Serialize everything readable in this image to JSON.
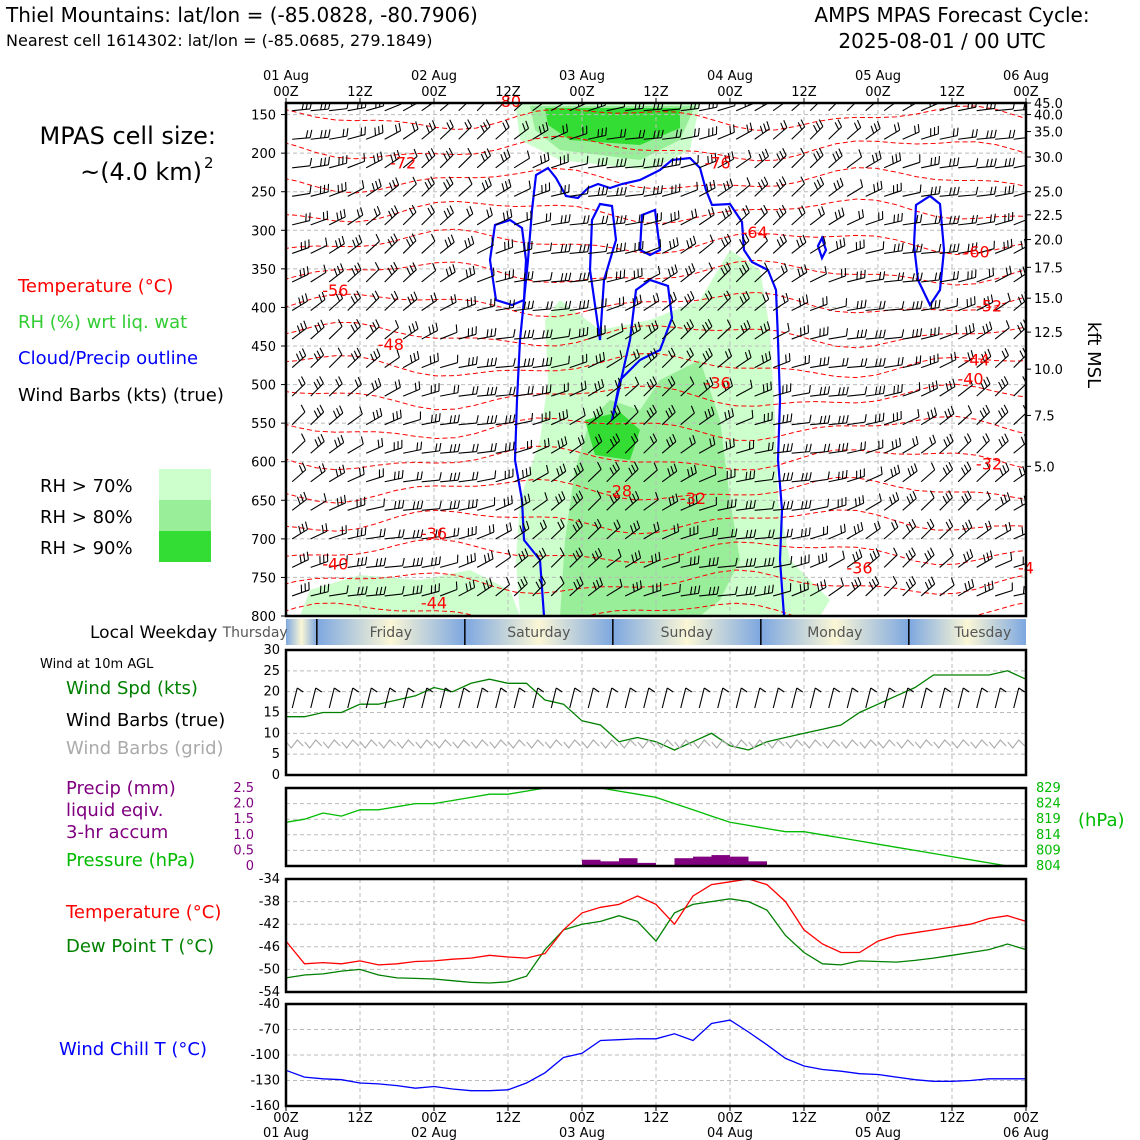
{
  "header": {
    "title_line1": "Thiel Mountains: lat/lon = (-85.0828, -80.7906)",
    "title_line2": "Nearest cell 1614302: lat/lon = (-85.0685, 279.1849)",
    "cycle_line1": "AMPS MPAS Forecast Cycle:",
    "cycle_line2": "2025-08-01 / 00 UTC"
  },
  "left_legend": {
    "cell_size_line1": "MPAS cell size:",
    "cell_size_line2": "~(4.0 km)",
    "cell_size_sup": "2",
    "temperature": "Temperature (°C)",
    "rh": "RH (%) wrt liq. wat",
    "cloud": "Cloud/Precip outline",
    "wind": "Wind Barbs (kts) (true)",
    "rh70": "RH > 70%",
    "rh80": "RH > 80%",
    "rh90": "RH > 90%"
  },
  "colors": {
    "temperature": "#ff0000",
    "rh": "#33cc33",
    "cloud": "#0000ff",
    "rh70": "#ccffcc",
    "rh80": "#99ee99",
    "rh90": "#33dd33",
    "precip": "#800080",
    "pressure": "#00bb00",
    "dewpoint": "#008000",
    "windchill": "#0000ff",
    "grid_barbs": "#aaaaaa"
  },
  "time_axis": {
    "ticks": [
      {
        "hour": 0,
        "top": "01 Aug",
        "bottom": "00Z"
      },
      {
        "hour": 12,
        "top": "",
        "bottom": "12Z"
      },
      {
        "hour": 24,
        "top": "02 Aug",
        "bottom": "00Z"
      },
      {
        "hour": 36,
        "top": "",
        "bottom": "12Z"
      },
      {
        "hour": 48,
        "top": "03 Aug",
        "bottom": "00Z"
      },
      {
        "hour": 60,
        "top": "",
        "bottom": "12Z"
      },
      {
        "hour": 72,
        "top": "04 Aug",
        "bottom": "00Z"
      },
      {
        "hour": 84,
        "top": "",
        "bottom": "12Z"
      },
      {
        "hour": 96,
        "top": "05 Aug",
        "bottom": "00Z"
      },
      {
        "hour": 108,
        "top": "",
        "bottom": "12Z"
      },
      {
        "hour": 120,
        "top": "06 Aug",
        "bottom": "00Z"
      }
    ],
    "weekday_label": "Local Weekday",
    "weekdays": [
      {
        "name": "Thursday",
        "center_hour": -5
      },
      {
        "name": "Friday",
        "center_hour": 17
      },
      {
        "name": "Saturday",
        "center_hour": 41
      },
      {
        "name": "Sunday",
        "center_hour": 65
      },
      {
        "name": "Monday",
        "center_hour": 89
      },
      {
        "name": "Tuesday",
        "center_hour": 113
      }
    ],
    "day_boundaries": [
      5,
      29,
      53,
      77,
      101
    ]
  },
  "chart_data": [
    {
      "type": "heatmap",
      "panel": "time-height cross section",
      "y_left": {
        "label": "",
        "ticks": [
          150,
          200,
          250,
          300,
          350,
          400,
          450,
          500,
          550,
          600,
          650,
          700,
          750,
          800
        ],
        "ylim": [
          800,
          135
        ]
      },
      "y_right": {
        "label": "kft MSL",
        "ticks": [
          {
            "p": 135,
            "t": "45.0"
          },
          {
            "p": 150,
            "t": "40.0"
          },
          {
            "p": 172,
            "t": "35.0"
          },
          {
            "p": 205,
            "t": "30.0"
          },
          {
            "p": 250,
            "t": "25.0"
          },
          {
            "p": 280,
            "t": "22.5"
          },
          {
            "p": 312,
            "t": "20.0"
          },
          {
            "p": 348,
            "t": "17.5"
          },
          {
            "p": 388,
            "t": "15.0"
          },
          {
            "p": 432,
            "t": "12.5"
          },
          {
            "p": 480,
            "t": "10.0"
          },
          {
            "p": 540,
            "t": "7.5"
          },
          {
            "p": 606,
            "t": "5.0"
          }
        ]
      },
      "temperature_labels": [
        {
          "hour": 36,
          "p": 140,
          "text": "-80"
        },
        {
          "hour": 19,
          "p": 220,
          "text": "-72"
        },
        {
          "hour": 70,
          "p": 220,
          "text": "-76"
        },
        {
          "hour": 76,
          "p": 310,
          "text": "-64"
        },
        {
          "hour": 112,
          "p": 335,
          "text": "-60"
        },
        {
          "hour": 8,
          "p": 385,
          "text": "-56"
        },
        {
          "hour": 114,
          "p": 405,
          "text": "-52"
        },
        {
          "hour": 17,
          "p": 455,
          "text": "-48"
        },
        {
          "hour": 112,
          "p": 475,
          "text": "-44"
        },
        {
          "hour": 111,
          "p": 500,
          "text": "-40"
        },
        {
          "hour": 70,
          "p": 505,
          "text": "-36"
        },
        {
          "hour": 114,
          "p": 610,
          "text": "-32"
        },
        {
          "hour": 66,
          "p": 655,
          "text": "-32"
        },
        {
          "hour": 54,
          "p": 645,
          "text": "-28"
        },
        {
          "hour": 24,
          "p": 700,
          "text": "-36"
        },
        {
          "hour": 8,
          "p": 740,
          "text": "-40"
        },
        {
          "hour": 24,
          "p": 790,
          "text": "-44"
        },
        {
          "hour": 93,
          "p": 745,
          "text": "-36"
        },
        {
          "hour": 120,
          "p": 745,
          "text": "-4"
        }
      ]
    },
    {
      "type": "line",
      "panel": "wind",
      "title": "Wind at 10m AGL",
      "series": [
        {
          "name": "Wind Spd (kts)",
          "x": [
            0,
            3,
            6,
            9,
            12,
            15,
            18,
            21,
            24,
            27,
            30,
            33,
            36,
            39,
            42,
            45,
            48,
            51,
            54,
            57,
            60,
            63,
            66,
            69,
            72,
            75,
            78,
            81,
            84,
            87,
            90,
            93,
            96,
            99,
            102,
            105,
            108,
            111,
            114,
            117,
            120
          ],
          "values": [
            14,
            14,
            15,
            15,
            17,
            17,
            18,
            19,
            21,
            20,
            22,
            23,
            22,
            22,
            18,
            17,
            13,
            12,
            8,
            9,
            8,
            6,
            8,
            10,
            7,
            6,
            8,
            9,
            10,
            11,
            12,
            15,
            17,
            19,
            21,
            24,
            24,
            24,
            24,
            25,
            23
          ]
        }
      ],
      "labels": {
        "speed": "Wind Spd (kts)",
        "barbs_true": "Wind Barbs (true)",
        "barbs_grid": "Wind Barbs (grid)"
      },
      "ylim": [
        0,
        30
      ],
      "yticks": [
        0,
        5,
        10,
        15,
        20,
        25,
        30
      ]
    },
    {
      "type": "bar",
      "panel": "precip-pressure",
      "labels": {
        "precip": "Precip (mm)",
        "precip2": "liquid eqiv.",
        "precip3": "3-hr accum",
        "pressure": "Pressure (hPa)",
        "pressure_unit": "(hPa)"
      },
      "precip": {
        "x": [
          48,
          51,
          54,
          57,
          63,
          66,
          69,
          72,
          75
        ],
        "values": [
          0.2,
          0.15,
          0.25,
          0.1,
          0.25,
          0.3,
          0.35,
          0.3,
          0.15
        ]
      },
      "precip_ylim": [
        0,
        2.5
      ],
      "precip_ticks": [
        "0",
        "0.5",
        "1.0",
        "1.5",
        "2.0",
        "2.5"
      ],
      "pressure": {
        "x": [
          0,
          3,
          6,
          9,
          12,
          15,
          18,
          21,
          24,
          27,
          30,
          33,
          36,
          39,
          42,
          45,
          48,
          51,
          54,
          57,
          60,
          63,
          66,
          69,
          72,
          75,
          78,
          81,
          84,
          87,
          90,
          93,
          96,
          99,
          102,
          105,
          108,
          111,
          114,
          117,
          120
        ],
        "values": [
          818,
          819,
          821,
          820,
          822,
          822,
          823,
          824,
          824,
          825,
          826,
          827,
          827,
          828,
          829,
          829,
          829,
          829,
          828,
          827,
          826,
          824,
          822,
          820,
          818,
          817,
          816,
          815,
          815,
          814,
          813,
          812,
          811,
          810,
          809,
          808,
          807,
          806,
          805,
          804,
          804
        ]
      },
      "pressure_ylim": [
        804,
        829
      ],
      "pressure_ticks": [
        "804",
        "809",
        "814",
        "819",
        "824",
        "829"
      ]
    },
    {
      "type": "line",
      "panel": "temperature",
      "labels": {
        "temp": "Temperature (°C)",
        "dew": "Dew Point T (°C)"
      },
      "ylim": [
        -54,
        -34
      ],
      "yticks": [
        -54,
        -50,
        -46,
        -42,
        -38,
        -34
      ],
      "series": [
        {
          "name": "Temperature (°C)",
          "x": [
            0,
            3,
            6,
            9,
            12,
            15,
            18,
            21,
            24,
            27,
            30,
            33,
            36,
            39,
            42,
            45,
            48,
            51,
            54,
            57,
            60,
            63,
            66,
            69,
            72,
            75,
            78,
            81,
            84,
            87,
            90,
            93,
            96,
            99,
            102,
            105,
            108,
            111,
            114,
            117,
            120
          ],
          "values": [
            -45,
            -49,
            -48.8,
            -49,
            -48.5,
            -49.2,
            -49,
            -48.6,
            -48.5,
            -48.2,
            -48,
            -47.5,
            -47.8,
            -48,
            -47.2,
            -43,
            -40,
            -39,
            -38.5,
            -37,
            -38.5,
            -42,
            -37,
            -35,
            -34.5,
            -34,
            -35,
            -38,
            -43,
            -45.5,
            -47,
            -47,
            -45,
            -44,
            -43.5,
            -43,
            -42.5,
            -42,
            -41,
            -40.5,
            -41.5
          ]
        },
        {
          "name": "Dew Point T (°C)",
          "x": [
            0,
            3,
            6,
            9,
            12,
            15,
            18,
            21,
            24,
            27,
            30,
            33,
            36,
            39,
            42,
            45,
            48,
            51,
            54,
            57,
            60,
            63,
            66,
            69,
            72,
            75,
            78,
            81,
            84,
            87,
            90,
            93,
            96,
            99,
            102,
            105,
            108,
            111,
            114,
            117,
            120
          ],
          "values": [
            -51.5,
            -51,
            -50.8,
            -50.3,
            -50,
            -51,
            -51.5,
            -51.6,
            -51.7,
            -52,
            -52.3,
            -52.4,
            -52.2,
            -51.2,
            -46.5,
            -43,
            -42,
            -41.5,
            -40.5,
            -41.5,
            -45,
            -40,
            -38.5,
            -38,
            -37.5,
            -38,
            -39.5,
            -44,
            -47,
            -49,
            -49.2,
            -48.5,
            -48.6,
            -48.7,
            -48.4,
            -48,
            -47.5,
            -47,
            -46.5,
            -45.5,
            -46.5
          ]
        }
      ]
    },
    {
      "type": "line",
      "panel": "windchill",
      "labels": {
        "windchill": "Wind Chill T (°C)"
      },
      "ylim": [
        -160,
        -40
      ],
      "yticks": [
        -160,
        -130,
        -100,
        -70,
        -40
      ],
      "series": [
        {
          "name": "Wind Chill T (°C)",
          "x": [
            0,
            3,
            6,
            9,
            12,
            15,
            18,
            21,
            24,
            27,
            30,
            33,
            36,
            39,
            42,
            45,
            48,
            51,
            54,
            57,
            60,
            63,
            66,
            69,
            72,
            75,
            78,
            81,
            84,
            87,
            90,
            93,
            96,
            99,
            102,
            105,
            108,
            111,
            114,
            117,
            120
          ],
          "values": [
            -118,
            -126,
            -128,
            -129,
            -133,
            -134,
            -136,
            -139,
            -137,
            -140,
            -142,
            -142,
            -141,
            -133,
            -121,
            -103,
            -98,
            -83,
            -82,
            -81,
            -81,
            -75,
            -83,
            -63,
            -59,
            -73,
            -88,
            -104,
            -113,
            -117,
            -119,
            -122,
            -123,
            -126,
            -129,
            -131,
            -131,
            -130,
            -128,
            -128,
            -128
          ]
        }
      ]
    }
  ]
}
